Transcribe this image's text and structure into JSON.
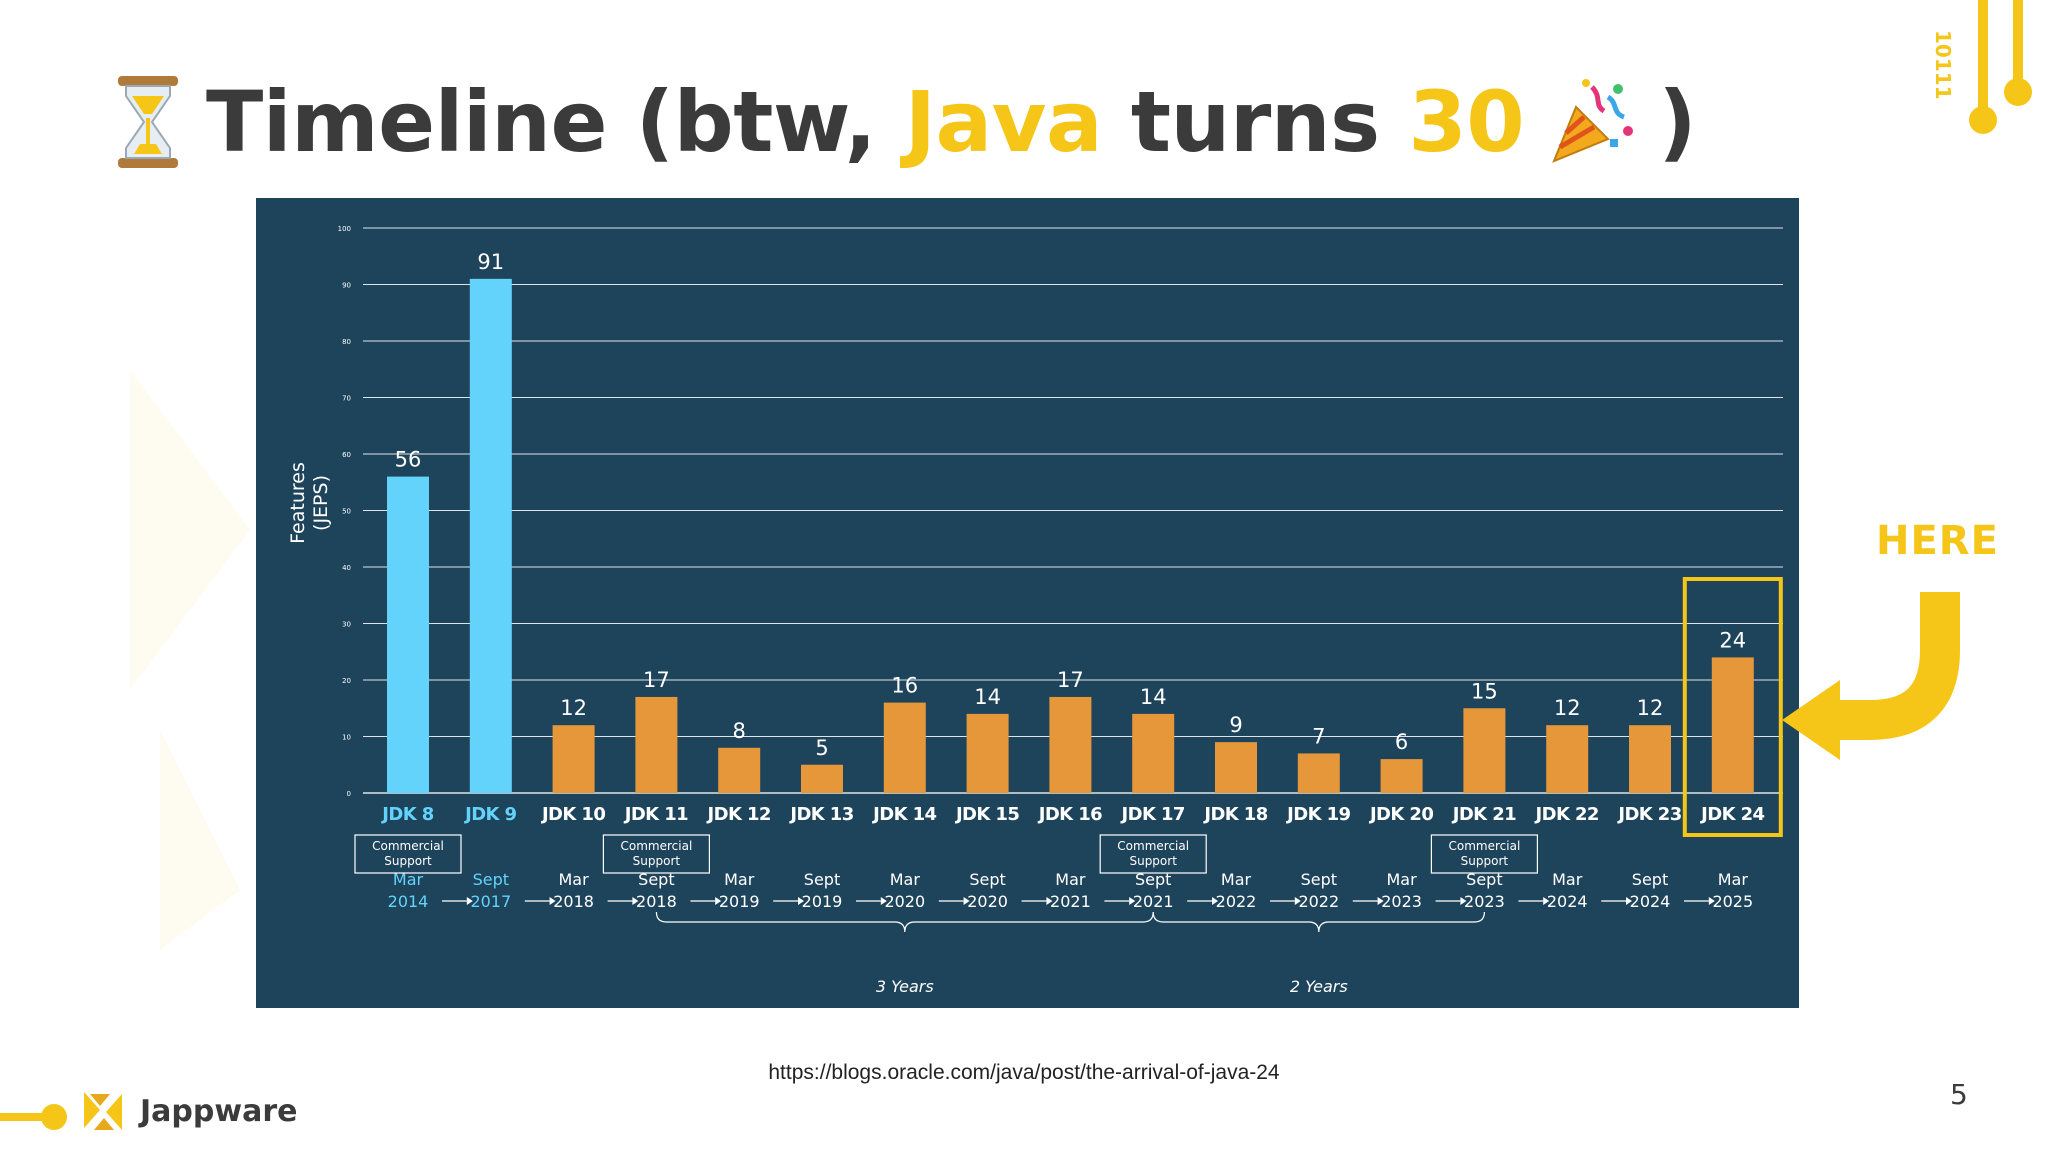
{
  "slide": {
    "title_prefix": "Timeline (btw, ",
    "title_java": "Java",
    "title_mid": " turns ",
    "title_30": "30",
    "title_suffix": ")",
    "here_label": "HERE",
    "source": "https://blogs.oracle.com/java/post/the-arrival-of-java-24",
    "page_number": "5",
    "brand_name": "Jappware",
    "deco_text": "10111",
    "accent_color": "#f5c518",
    "icons": [
      "hourglass-icon",
      "party-popper-icon",
      "jappware-logo-icon",
      "curved-arrow-icon"
    ]
  },
  "chart_data": {
    "type": "bar",
    "ylabel": "Features\n(JEPS)",
    "ylim": [
      0,
      100
    ],
    "yticks": [
      0,
      10,
      20,
      30,
      40,
      50,
      60,
      70,
      80,
      90,
      100
    ],
    "grid": true,
    "categories": [
      "JDK 8",
      "JDK 9",
      "JDK 10",
      "JDK 11",
      "JDK 12",
      "JDK 13",
      "JDK 14",
      "JDK 15",
      "JDK 16",
      "JDK 17",
      "JDK 18",
      "JDK 19",
      "JDK 20",
      "JDK 21",
      "JDK 22",
      "JDK 23",
      "JDK 24"
    ],
    "values": [
      56,
      91,
      12,
      17,
      8,
      5,
      16,
      14,
      17,
      14,
      9,
      7,
      6,
      15,
      12,
      12,
      24
    ],
    "release_month": [
      "Mar",
      "Sept",
      "Mar",
      "Sept",
      "Mar",
      "Sept",
      "Mar",
      "Sept",
      "Mar",
      "Sept",
      "Mar",
      "Sept",
      "Mar",
      "Sept",
      "Mar",
      "Sept",
      "Mar"
    ],
    "release_year": [
      "2014",
      "2017",
      "2018",
      "2018",
      "2019",
      "2019",
      "2020",
      "2020",
      "2021",
      "2021",
      "2022",
      "2022",
      "2023",
      "2023",
      "2024",
      "2024",
      "2025"
    ],
    "legacy_count": 2,
    "commercial_support_label": "Commercial\nSupport",
    "commercial_support": [
      "JDK 8",
      "JDK 11",
      "JDK 17",
      "JDK 21"
    ],
    "cadence": [
      {
        "from": "JDK 11",
        "to": "JDK 17",
        "label": "3 Years"
      },
      {
        "from": "JDK 17",
        "to": "JDK 21",
        "label": "2 Years"
      }
    ],
    "highlighted": "JDK 24",
    "colors": {
      "background": "#1e445c",
      "legacy_bar": "#63d3fb",
      "bar": "#e5973a",
      "highlight_box": "#f5c518",
      "grid": "#ffffff",
      "text": "#ffffff"
    }
  }
}
